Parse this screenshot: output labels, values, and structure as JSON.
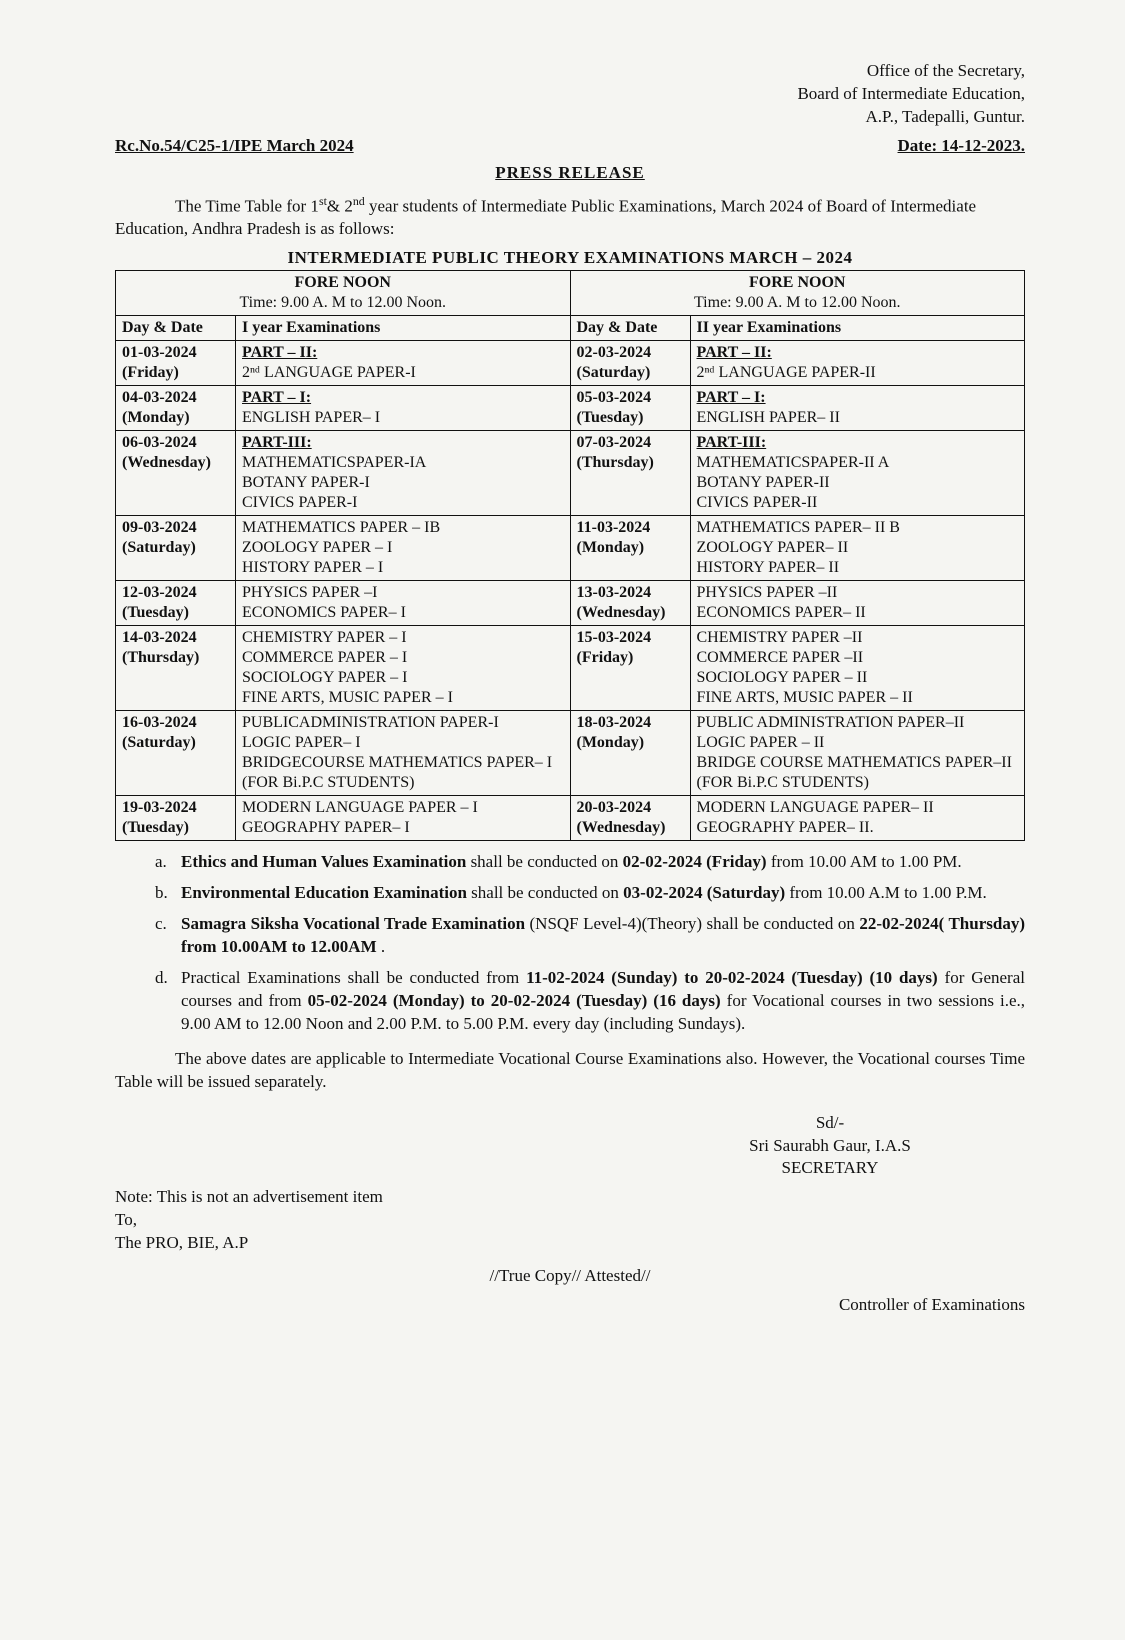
{
  "header": {
    "office_line1": "Office of the Secretary,",
    "office_line2": "Board of Intermediate Education,",
    "office_line3": "A.P., Tadepalli, Guntur.",
    "ref": "Rc.No.54/C25-1/IPE March 2024",
    "date_label": "Date: 14-12-2023."
  },
  "press_release": {
    "title": "PRESS RELEASE",
    "intro_prefix": "The Time Table for 1",
    "intro_sup1": "st",
    "intro_amp": "& 2",
    "intro_sup2": "nd",
    "intro_rest": " year students of Intermediate Public Examinations, March 2024 of Board of Intermediate Education, Andhra Pradesh is as follows:"
  },
  "table": {
    "title": "INTERMEDIATE PUBLIC THEORY EXAMINATIONS MARCH – 2024",
    "left_head": "FORE NOON",
    "left_time": "Time: 9.00 A. M to 12.00 Noon.",
    "right_head": "FORE NOON",
    "right_time": "Time: 9.00 A. M to 12.00 Noon.",
    "col_daydate": "Day & Date",
    "col_y1": "I year Examinations",
    "col_y2": "II year Examinations",
    "rows": [
      {
        "d1": "01-03-2024",
        "w1": "(Friday)",
        "e1_part": "PART – II:",
        "e1_rest": "2ⁿᵈ LANGUAGE PAPER-I",
        "d2": "02-03-2024",
        "w2": "(Saturday)",
        "e2_part": "PART – II:",
        "e2_rest": "2ⁿᵈ LANGUAGE PAPER-II"
      },
      {
        "d1": "04-03-2024",
        "w1": "(Monday)",
        "e1_part": "PART – I:",
        "e1_rest": "ENGLISH PAPER– I",
        "d2": "05-03-2024",
        "w2": "(Tuesday)",
        "e2_part": "PART – I:",
        "e2_rest": "ENGLISH PAPER– II"
      },
      {
        "d1": "06-03-2024",
        "w1": "(Wednesday)",
        "e1_part": "PART-III:",
        "e1_rest": "MATHEMATICSPAPER-IA\nBOTANY PAPER-I\nCIVICS PAPER-I",
        "d2": "07-03-2024",
        "w2": "(Thursday)",
        "e2_part": "PART-III:",
        "e2_rest": "MATHEMATICSPAPER-II A\nBOTANY PAPER-II\nCIVICS PAPER-II"
      },
      {
        "d1": "09-03-2024",
        "w1": "(Saturday)",
        "e1_part": "",
        "e1_rest": "MATHEMATICS PAPER – IB\nZOOLOGY PAPER – I\nHISTORY PAPER – I",
        "d2": "11-03-2024",
        "w2": "(Monday)",
        "e2_part": "",
        "e2_rest": "MATHEMATICS PAPER– II B\nZOOLOGY PAPER– II\nHISTORY PAPER– II"
      },
      {
        "d1": "12-03-2024",
        "w1": "(Tuesday)",
        "e1_part": "",
        "e1_rest": "PHYSICS PAPER –I\nECONOMICS PAPER– I",
        "d2": "13-03-2024",
        "w2": "(Wednesday)",
        "e2_part": "",
        "e2_rest": "PHYSICS PAPER –II\nECONOMICS PAPER– II"
      },
      {
        "d1": "14-03-2024",
        "w1": "(Thursday)",
        "e1_part": "",
        "e1_rest": "CHEMISTRY PAPER – I\nCOMMERCE PAPER – I\nSOCIOLOGY PAPER – I\nFINE ARTS, MUSIC PAPER – I",
        "d2": "15-03-2024",
        "w2": "(Friday)",
        "e2_part": "",
        "e2_rest": "CHEMISTRY PAPER –II\nCOMMERCE PAPER –II\nSOCIOLOGY PAPER – II\nFINE ARTS, MUSIC PAPER – II"
      },
      {
        "d1": "16-03-2024",
        "w1": "(Saturday)",
        "e1_part": "",
        "e1_rest": "PUBLICADMINISTRATION PAPER-I\nLOGIC PAPER– I\nBRIDGECOURSE MATHEMATICS PAPER– I\n(FOR Bi.P.C STUDENTS)",
        "d2": "18-03-2024",
        "w2": "(Monday)",
        "e2_part": "",
        "e2_rest": "PUBLIC ADMINISTRATION PAPER–II\nLOGIC PAPER – II\nBRIDGE COURSE MATHEMATICS PAPER–II\n(FOR Bi.P.C STUDENTS)"
      },
      {
        "d1": "19-03-2024",
        "w1": "(Tuesday)",
        "e1_part": "",
        "e1_rest": "MODERN LANGUAGE PAPER – I\nGEOGRAPHY PAPER– I",
        "d2": "20-03-2024",
        "w2": "(Wednesday)",
        "e2_part": "",
        "e2_rest": "MODERN LANGUAGE PAPER– II\nGEOGRAPHY PAPER– II."
      }
    ]
  },
  "notes": {
    "a_marker": "a.",
    "a_bold": "Ethics and Human Values Examination",
    "a_mid": " shall be conducted on ",
    "a_bold2": "02-02-2024 (Friday)",
    "a_rest": " from 10.00 AM to 1.00 PM.",
    "b_marker": "b.",
    "b_bold": "Environmental Education Examination",
    "b_mid": " shall be conducted on ",
    "b_bold2": "03-02-2024 (Saturday)",
    "b_rest": " from 10.00 A.M to 1.00 P.M.",
    "c_marker": "c.",
    "c_bold": "Samagra Siksha Vocational Trade Examination",
    "c_mid": " (NSQF Level-4)(Theory) shall be conducted on ",
    "c_bold2": "22-02-2024( Thursday) from 10.00AM to 12.00AM",
    "c_rest": " .",
    "d_marker": "d.",
    "d_pre": "Practical Examinations shall be conducted from ",
    "d_b1": "11-02-2024 (Sunday) to 20-02-2024 (Tuesday) (10 days)",
    "d_mid": " for General courses and from ",
    "d_b2": "05-02-2024 (Monday) to 20-02-2024 (Tuesday) (16 days)",
    "d_rest": " for Vocational courses in two sessions i.e., 9.00 AM to 12.00 Noon and 2.00 P.M. to 5.00 P.M. every day (including Sundays)."
  },
  "closing": {
    "para": "The above dates are applicable to Intermediate Vocational Course Examinations also. However, the Vocational courses Time Table will be issued separately.",
    "sd": "Sd/-",
    "name": "Sri Saurabh Gaur, I.A.S",
    "desig": "SECRETARY",
    "foot1": "Note: This is not an advertisement item",
    "foot2": "To,",
    "foot3": "The PRO, BIE, A.P",
    "truecopy": "//True Copy// Attested//",
    "controller": "Controller of Examinations"
  }
}
